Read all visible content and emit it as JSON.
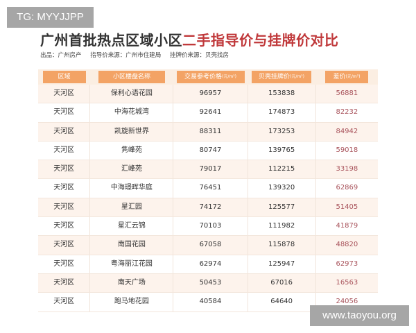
{
  "overlays": {
    "tg": "TG: MYYJJPP",
    "site": "www.taoyou.org"
  },
  "title": {
    "main": "广州首批热点区域小区",
    "highlight": "二手指导价与挂牌价对比"
  },
  "subtitle": {
    "producer": "出品：广州房产",
    "guide_source": "指导价来源：广州市住建局",
    "listing_source": "挂牌价来源：贝壳找房"
  },
  "colors": {
    "header": "#f3a365",
    "highlight": "#c0393b",
    "diff": "#a9545c"
  },
  "headers": [
    {
      "label": "区域",
      "unit": ""
    },
    {
      "label": "小区楼盘名称",
      "unit": ""
    },
    {
      "label": "交易参考价格",
      "unit": "(元/m²)"
    },
    {
      "label": "贝壳挂牌价",
      "unit": "(元/m²)"
    },
    {
      "label": "差价",
      "unit": "(元/m²)"
    }
  ],
  "rows": [
    [
      "天河区",
      "保利心语花园",
      "96957",
      "153838",
      "56881"
    ],
    [
      "天河区",
      "中海花城湾",
      "92641",
      "174873",
      "82232"
    ],
    [
      "天河区",
      "凯旋新世界",
      "88311",
      "173253",
      "84942"
    ],
    [
      "天河区",
      "隽峰苑",
      "80747",
      "139765",
      "59018"
    ],
    [
      "天河区",
      "汇峰苑",
      "79017",
      "112215",
      "33198"
    ],
    [
      "天河区",
      "中海璟晖华庭",
      "76451",
      "139320",
      "62869"
    ],
    [
      "天河区",
      "星汇园",
      "74172",
      "125577",
      "51405"
    ],
    [
      "天河区",
      "星汇云锦",
      "70103",
      "111982",
      "41879"
    ],
    [
      "天河区",
      "南国花园",
      "67058",
      "115878",
      "48820"
    ],
    [
      "天河区",
      "粤海丽江花园",
      "62974",
      "125947",
      "62973"
    ],
    [
      "天河区",
      "南天广场",
      "50453",
      "67016",
      "16563"
    ],
    [
      "天河区",
      "跑马地花园",
      "40584",
      "64640",
      "24056"
    ]
  ]
}
